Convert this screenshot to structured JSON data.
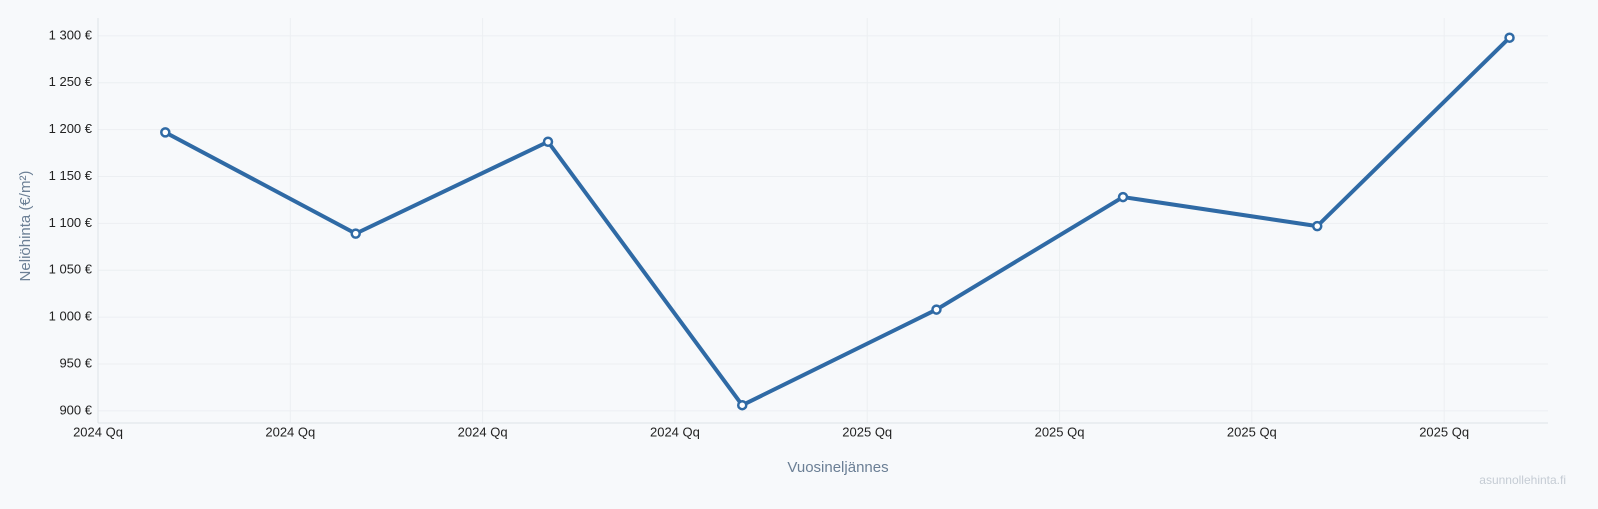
{
  "chart_data": {
    "type": "line",
    "y_label": "Neliöhinta (€/m²)",
    "x_label": "Vuosineljännes",
    "watermark": "asunnollehinta.fi",
    "x": [
      0.35,
      1.34,
      2.34,
      3.35,
      4.36,
      5.33,
      6.34,
      7.34
    ],
    "series": [
      {
        "color": "#2f6aa5",
        "values": [
          1197,
          1089,
          1187,
          906,
          1008,
          1128,
          1097,
          1298
        ]
      }
    ],
    "xlim": [
      0,
      7.54
    ],
    "xticks": [
      {
        "value": 0,
        "label": "2024 Qq"
      },
      {
        "value": 1,
        "label": "2024 Qq"
      },
      {
        "value": 2,
        "label": "2024 Qq"
      },
      {
        "value": 3,
        "label": "2024 Qq"
      },
      {
        "value": 4,
        "label": "2025 Qq"
      },
      {
        "value": 5,
        "label": "2025 Qq"
      },
      {
        "value": 6,
        "label": "2025 Qq"
      },
      {
        "value": 7,
        "label": "2025 Qq"
      }
    ],
    "ylim": [
      887,
      1319
    ],
    "yticks": [
      {
        "value": 900,
        "label": "900 €"
      },
      {
        "value": 950,
        "label": "950 €"
      },
      {
        "value": 1000,
        "label": "1 000 €"
      },
      {
        "value": 1050,
        "label": "1 050 €"
      },
      {
        "value": 1100,
        "label": "1 100 €"
      },
      {
        "value": 1150,
        "label": "1 150 €"
      },
      {
        "value": 1200,
        "label": "1 200 €"
      },
      {
        "value": 1250,
        "label": "1 250 €"
      },
      {
        "value": 1300,
        "label": "1 300 €"
      }
    ],
    "grid": true
  }
}
